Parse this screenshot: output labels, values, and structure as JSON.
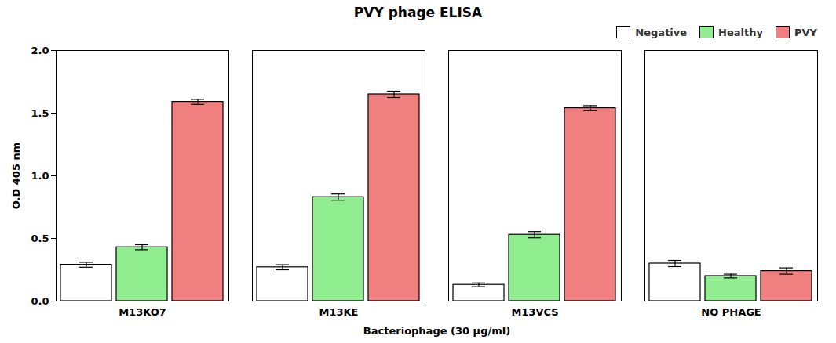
{
  "chart_data": {
    "type": "bar",
    "title": "PVY phage ELISA",
    "xlabel": "Bacteriophage (30 μg/ml)",
    "ylabel": "O.D 405 nm",
    "categories": [
      "M13KO7",
      "M13KE",
      "M13VCS",
      "NO PHAGE"
    ],
    "series": [
      {
        "name": "Negative",
        "color": "#FFFFFF",
        "values": [
          0.29,
          0.27,
          0.13,
          0.3
        ],
        "errors": [
          0.02,
          0.02,
          0.015,
          0.025
        ]
      },
      {
        "name": "Healthy",
        "color": "#90EE90",
        "values": [
          0.43,
          0.83,
          0.53,
          0.2
        ],
        "errors": [
          0.02,
          0.025,
          0.025,
          0.015
        ]
      },
      {
        "name": "PVY",
        "color": "#F08080",
        "values": [
          1.59,
          1.65,
          1.54,
          0.24
        ],
        "errors": [
          0.02,
          0.025,
          0.02,
          0.025
        ]
      }
    ],
    "ylim": [
      0.0,
      2.0
    ],
    "yticks": [
      {
        "value": 0,
        "label": "0.0"
      },
      0.5,
      {
        "value": 1,
        "label": "1.0"
      },
      1.5,
      {
        "value": 2,
        "label": "2.0"
      }
    ],
    "grid": false,
    "legend": "upper right"
  }
}
